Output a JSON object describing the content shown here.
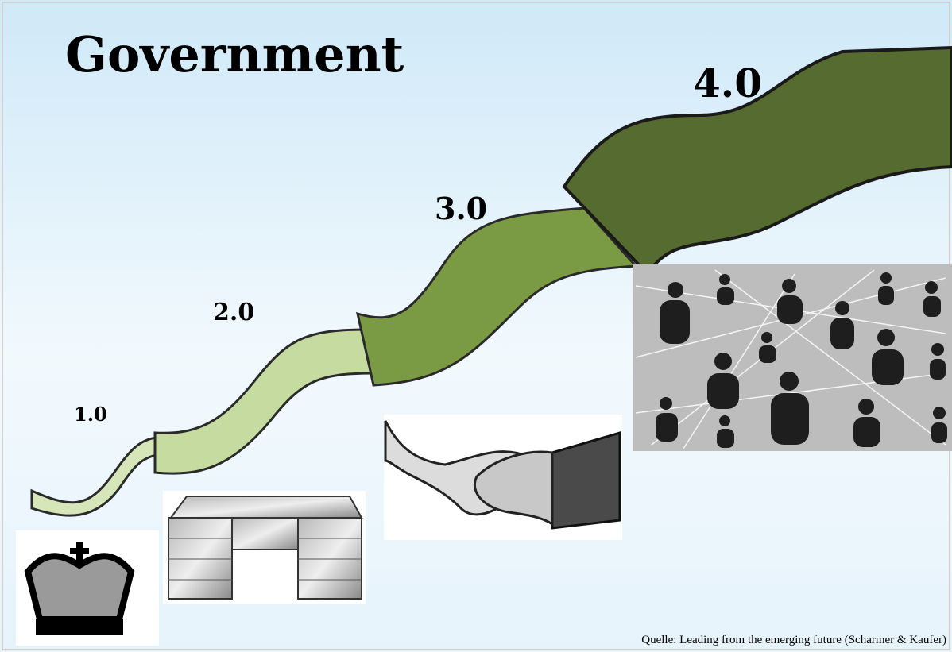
{
  "title": "Government",
  "stages": [
    {
      "label": "1.0"
    },
    {
      "label": "2.0"
    },
    {
      "label": "3.0"
    },
    {
      "label": "4.0"
    }
  ],
  "source": "Quelle: Leading from the emerging future (Scharmer & Kaufer)"
}
